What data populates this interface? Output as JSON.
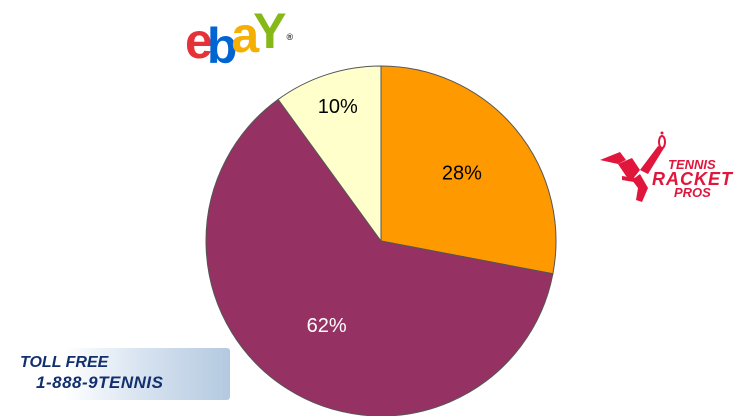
{
  "chart_data": {
    "type": "pie",
    "slices": [
      {
        "label": "28%",
        "value": 28,
        "color": "#ff9900"
      },
      {
        "label": "62%",
        "value": 62,
        "color": "#963263"
      },
      {
        "label": "10%",
        "value": 10,
        "color": "#ffffcc"
      }
    ],
    "start_angle_deg": 0,
    "direction": "clockwise"
  },
  "logos": {
    "ebay": {
      "letters": [
        "e",
        "b",
        "a",
        "Y"
      ],
      "colors": [
        "#e53238",
        "#0064d2",
        "#f5af02",
        "#86b817"
      ],
      "registered": "®"
    },
    "tennis_racket_pros": {
      "line1": "TENNIS",
      "line2": "RACKET",
      "line3": "PROS",
      "color": "#e0163c"
    }
  },
  "toll_free": {
    "label": "TOLL FREE",
    "number": "1-888-9TENNIS",
    "color": "#13306e"
  }
}
